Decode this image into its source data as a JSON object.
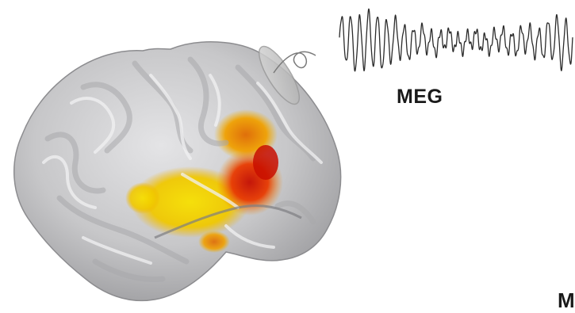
{
  "labels": {
    "meg": "MEG",
    "cut_off": "M"
  },
  "icons": {
    "brain": "brain-cortex-surface-icon",
    "sensor": "meg-sensor-coil-icon",
    "signal": "meg-signal-waveform-icon"
  },
  "colors": {
    "cortex": "#c9c9cb",
    "cortex_shadow": "#8f8f92",
    "activation_low": "#f2d600",
    "activation_mid": "#f08a00",
    "activation_high": "#d31a00",
    "signal_line": "#2b2b2b"
  }
}
